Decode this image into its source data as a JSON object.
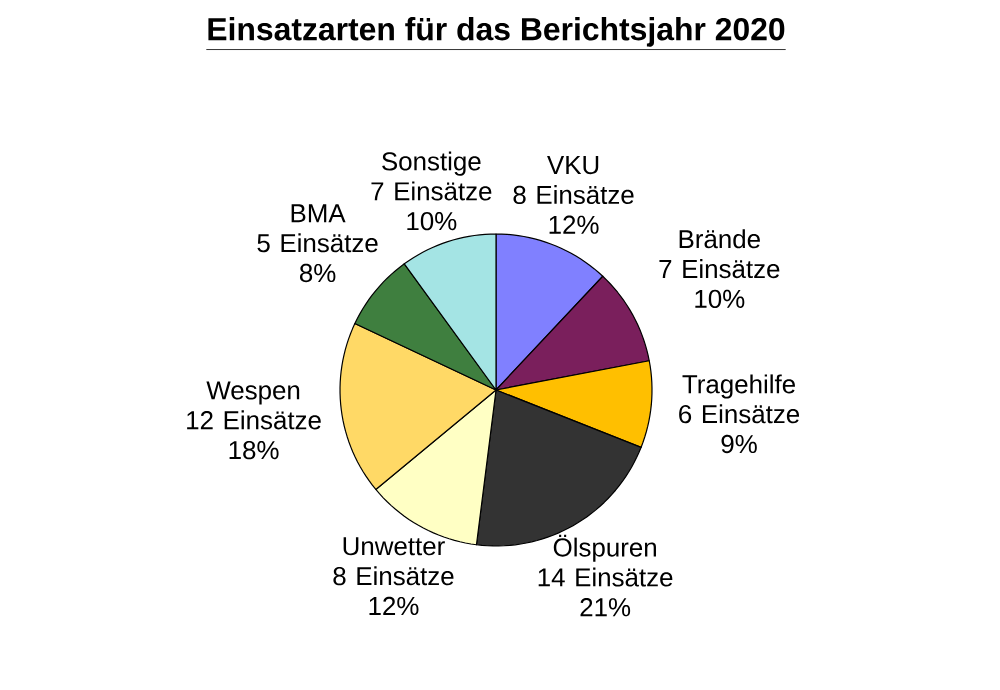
{
  "chart_data": {
    "type": "pie",
    "title": "Einsatzarten für das Berichtsjahr 2020",
    "categories": [
      "VKU",
      "Brände",
      "Tragehilfe",
      "Ölspuren",
      "Unwetter",
      "Wespen",
      "BMA",
      "Sonstige"
    ],
    "values": [
      12,
      10,
      9,
      21,
      12,
      18,
      8,
      10
    ],
    "value_labels": [
      "8 Einsätze 12%",
      "7 Einsätze 10%",
      "6 Einsätze 9%",
      "14 Einsätze 21%",
      "8 Einsätze 12%",
      "12 Einsätze 18%",
      "5 Einsätze 8%",
      "7 Einsätze 10%"
    ],
    "colors": [
      "#8080ff",
      "#7a1f5c",
      "#ffbf00",
      "#333333",
      "#ffffc4",
      "#ffd966",
      "#3f7f3f",
      "#a4e4e4"
    ]
  }
}
